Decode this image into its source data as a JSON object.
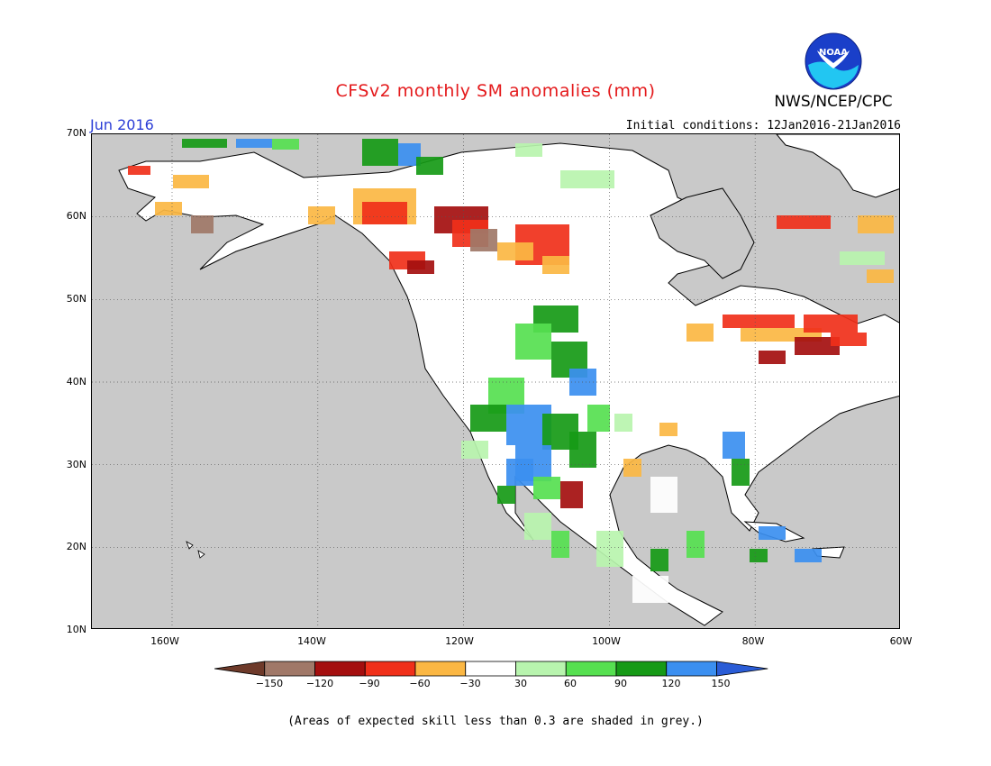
{
  "header": {
    "title": "CFSv2 monthly SM anomalies (mm)",
    "title_color": "#e41a1c",
    "month_label": "Jun 2016",
    "month_color": "#2a3cd6",
    "initial_conditions": "Initial conditions: 12Jan2016-21Jan2016",
    "agency": "NWS/NCEP/CPC",
    "logo_text": "NOAA"
  },
  "map": {
    "lon_range": [
      -171,
      -60
    ],
    "lat_range": [
      10,
      70
    ],
    "background_color": "#c9c9c9",
    "grid": "dotted",
    "lat_labels": [
      "70N",
      "60N",
      "50N",
      "40N",
      "30N",
      "20N",
      "10N"
    ],
    "lon_labels": [
      "160W",
      "140W",
      "120W",
      "100W",
      "80W",
      "60W"
    ]
  },
  "colorbar": {
    "labels": [
      "−150",
      "−120",
      "−90",
      "−60",
      "−30",
      "30",
      "60",
      "90",
      "120",
      "150"
    ],
    "colors": [
      "#6e3a2a",
      "#a07868",
      "#a40f0f",
      "#f0301a",
      "#fbb743",
      "#ffffff",
      "#b8f4ae",
      "#56e050",
      "#169a16",
      "#3b8ff0",
      "#2a5cd6"
    ]
  },
  "footer": {
    "note": "(Areas of expected skill less than 0.3 are shaded in grey.)"
  }
}
